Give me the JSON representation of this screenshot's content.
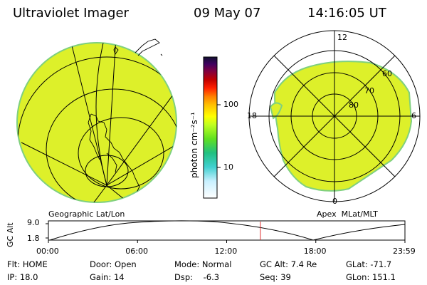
{
  "header": {
    "instrument": "Ultraviolet Imager",
    "date": "09 May 07",
    "time": "14:16:05 UT"
  },
  "colorbar": {
    "unit_label": "photon cm⁻²s⁻¹",
    "tick_100": "100",
    "tick_10": "10",
    "colors": [
      "#ffffff",
      "#c8f0ff",
      "#40d0d0",
      "#20c080",
      "#60e020",
      "#c0ff20",
      "#ffff00",
      "#ffc000",
      "#ff8000",
      "#ff2000",
      "#c00000",
      "#800040",
      "#400060",
      "#101030"
    ]
  },
  "left_panel": {
    "label": "Geographic Lat/Lon",
    "fill_color": "#ddf02a"
  },
  "right_panel": {
    "label": "Apex  MLat/MLT",
    "mlt_12": "12",
    "mlt_18": "18",
    "mlt_6": "6",
    "mlt_0": "0",
    "lat_60": "60",
    "lat_70": "70",
    "lat_80": "80"
  },
  "altitude_plot": {
    "ylabel": "GC Alt",
    "y_top": "9.0",
    "y_bottom": "1.8",
    "x_ticks": [
      "00:00",
      "06:00",
      "12:00",
      "18:00",
      "23:59"
    ],
    "marker_time_hours": 14.27,
    "marker_color": "#e03030"
  },
  "info": {
    "flt": "Flt: HOME",
    "ip": "IP: 18.0",
    "door": "Door: Open",
    "gain": "Gain: 14",
    "mode": "Mode: Normal",
    "dsp": "Dsp:    -6.3",
    "gcalt": "GC Alt: 7.4 Re",
    "seq": "Seq: 39",
    "glat": "GLat: -71.7",
    "glon": "GLon: 151.1"
  }
}
